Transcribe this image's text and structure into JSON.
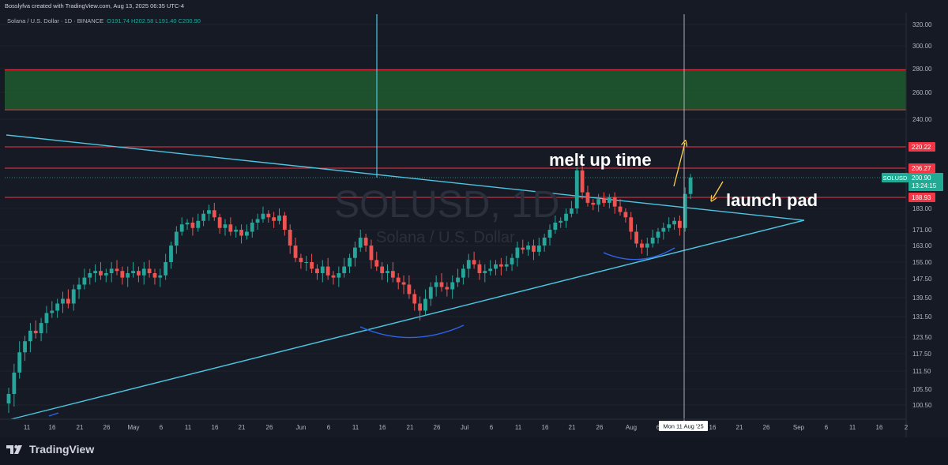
{
  "header": {
    "attribution": "Bosslyfva created with TradingView.com, Aug 13, 2025 06:35 UTC-4",
    "symbol_line": "Solana / U.S. Dollar · 1D · BINANCE",
    "ohlc": "O191.74 H202.58 L191.40 C200.90"
  },
  "watermark": {
    "ticker": "SOLUSD, 1D",
    "name": "Solana / U.S. Dollar"
  },
  "annotations": {
    "melt_up": "melt up time",
    "launch_pad": "launch pad"
  },
  "footer": {
    "brand": "TradingView"
  },
  "colors": {
    "up": "#26a69a",
    "down": "#ef5350",
    "trendline": "#4ec5e0",
    "level": "#f23645",
    "zone_fill": "#1e5a2e",
    "arrow": "#ffd24a",
    "cup": "#2f64e8",
    "crosshair": "#d1d4dc",
    "price_tag": "#22ab94"
  },
  "price_tags": {
    "current": "200.90",
    "countdown": "13:24:15",
    "symbol": "SOLUSD",
    "l220": "220.22",
    "l206": "206.27",
    "l188": "188.93"
  },
  "date_tag": "Mon 11 Aug '25",
  "chart_data": {
    "type": "candlestick",
    "symbol": "SOLUSD",
    "timeframe": "1D",
    "y_axis": {
      "ticks": [
        320,
        300,
        280,
        260,
        240,
        183,
        171,
        163,
        155,
        147.5,
        139.5,
        131.5,
        123.5,
        117.5,
        111.5,
        105.5,
        100.5
      ]
    },
    "x_axis": {
      "ticks": [
        "11",
        "16",
        "21",
        "26",
        "May",
        "6",
        "11",
        "16",
        "21",
        "26",
        "Jun",
        "6",
        "11",
        "16",
        "21",
        "26",
        "Jul",
        "6",
        "11",
        "16",
        "21",
        "26",
        "Aug",
        "6",
        "16",
        "21",
        "26",
        "Sep",
        "6",
        "11",
        "16",
        "2"
      ]
    },
    "horizontal_levels": [
      220.22,
      206.27,
      188.93
    ],
    "resistance_zone": [
      247,
      279
    ],
    "current_price": 200.9,
    "close_series": [
      104,
      111,
      118,
      122,
      126,
      125,
      129,
      133,
      134,
      137,
      139,
      137,
      143,
      145,
      148,
      150,
      151,
      149,
      150,
      152,
      151,
      148,
      150,
      151,
      149,
      152,
      150,
      148,
      149,
      155,
      163,
      170,
      174,
      175,
      172,
      176,
      180,
      182,
      178,
      172,
      174,
      170,
      171,
      168,
      170,
      175,
      177,
      180,
      178,
      176,
      179,
      171,
      163,
      157,
      155,
      155,
      152,
      150,
      153,
      149,
      148,
      150,
      153,
      157,
      162,
      167,
      163,
      156,
      153,
      150,
      151,
      148,
      146,
      145,
      141,
      137,
      134,
      139,
      144,
      146,
      144,
      143,
      146,
      148,
      152,
      156,
      154,
      150,
      151,
      152,
      154,
      153,
      154,
      157,
      162,
      161,
      163,
      160,
      163,
      167,
      171,
      175,
      176,
      180,
      183,
      205,
      192,
      186,
      185,
      188,
      186,
      189,
      184,
      181,
      178,
      170,
      164,
      162,
      164,
      167,
      170,
      172,
      174,
      176,
      172,
      191,
      201
    ]
  }
}
